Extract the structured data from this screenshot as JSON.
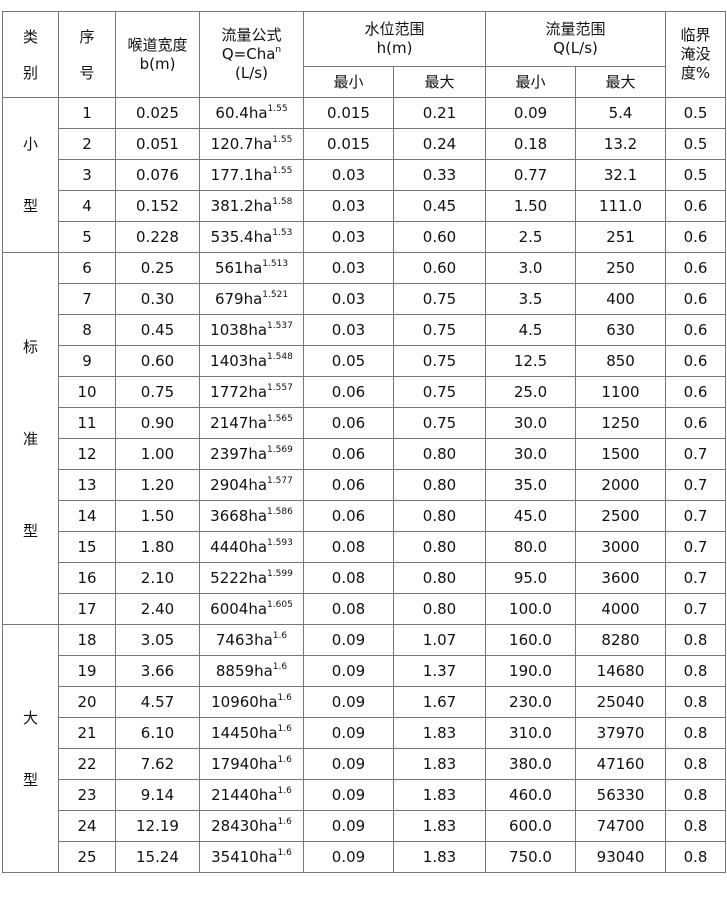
{
  "headers": {
    "category": [
      "类",
      "别"
    ],
    "index": [
      "序",
      "号"
    ],
    "throat_width": [
      "喉道宽度",
      "b(m)"
    ],
    "formula": [
      "流量公式",
      "Q=Cha",
      "n",
      "(L/s)"
    ],
    "water_level": [
      "水位范围",
      "h(m)"
    ],
    "flow_range": [
      "流量范围",
      "Q(L/s)"
    ],
    "submergence": [
      "临界",
      "淹没",
      "度%"
    ],
    "min": "最小",
    "max": "最大"
  },
  "groups": [
    {
      "label": [
        "小",
        "型"
      ],
      "rows": [
        {
          "no": "1",
          "b": "0.025",
          "c": "60.4ha",
          "n": "1.55",
          "hmin": "0.015",
          "hmax": "0.21",
          "qmin": "0.09",
          "qmax": "5.4",
          "s": "0.5"
        },
        {
          "no": "2",
          "b": "0.051",
          "c": "120.7ha",
          "n": "1.55",
          "hmin": "0.015",
          "hmax": "0.24",
          "qmin": "0.18",
          "qmax": "13.2",
          "s": "0.5"
        },
        {
          "no": "3",
          "b": "0.076",
          "c": "177.1ha",
          "n": "1.55",
          "hmin": "0.03",
          "hmax": "0.33",
          "qmin": "0.77",
          "qmax": "32.1",
          "s": "0.5"
        },
        {
          "no": "4",
          "b": "0.152",
          "c": "381.2ha",
          "n": "1.58",
          "hmin": "0.03",
          "hmax": "0.45",
          "qmin": "1.50",
          "qmax": "111.0",
          "s": "0.6"
        },
        {
          "no": "5",
          "b": "0.228",
          "c": "535.4ha",
          "n": "1.53",
          "hmin": "0.03",
          "hmax": "0.60",
          "qmin": "2.5",
          "qmax": "251",
          "s": "0.6"
        }
      ]
    },
    {
      "label": [
        "标",
        "准",
        "型"
      ],
      "rows": [
        {
          "no": "6",
          "b": "0.25",
          "c": "561ha",
          "n": "1.513",
          "hmin": "0.03",
          "hmax": "0.60",
          "qmin": "3.0",
          "qmax": "250",
          "s": "0.6"
        },
        {
          "no": "7",
          "b": "0.30",
          "c": "679ha",
          "n": "1.521",
          "hmin": "0.03",
          "hmax": "0.75",
          "qmin": "3.5",
          "qmax": "400",
          "s": "0.6"
        },
        {
          "no": "8",
          "b": "0.45",
          "c": "1038ha",
          "n": "1.537",
          "hmin": "0.03",
          "hmax": "0.75",
          "qmin": "4.5",
          "qmax": "630",
          "s": "0.6"
        },
        {
          "no": "9",
          "b": "0.60",
          "c": "1403ha",
          "n": "1.548",
          "hmin": "0.05",
          "hmax": "0.75",
          "qmin": "12.5",
          "qmax": "850",
          "s": "0.6"
        },
        {
          "no": "10",
          "b": "0.75",
          "c": "1772ha",
          "n": "1.557",
          "hmin": "0.06",
          "hmax": "0.75",
          "qmin": "25.0",
          "qmax": "1100",
          "s": "0.6"
        },
        {
          "no": "11",
          "b": "0.90",
          "c": "2147ha",
          "n": "1.565",
          "hmin": "0.06",
          "hmax": "0.75",
          "qmin": "30.0",
          "qmax": "1250",
          "s": "0.6"
        },
        {
          "no": "12",
          "b": "1.00",
          "c": "2397ha",
          "n": "1.569",
          "hmin": "0.06",
          "hmax": "0.80",
          "qmin": "30.0",
          "qmax": "1500",
          "s": "0.7"
        },
        {
          "no": "13",
          "b": "1.20",
          "c": "2904ha",
          "n": "1.577",
          "hmin": "0.06",
          "hmax": "0.80",
          "qmin": "35.0",
          "qmax": "2000",
          "s": "0.7"
        },
        {
          "no": "14",
          "b": "1.50",
          "c": "3668ha",
          "n": "1.586",
          "hmin": "0.06",
          "hmax": "0.80",
          "qmin": "45.0",
          "qmax": "2500",
          "s": "0.7"
        },
        {
          "no": "15",
          "b": "1.80",
          "c": "4440ha",
          "n": "1.593",
          "hmin": "0.08",
          "hmax": "0.80",
          "qmin": "80.0",
          "qmax": "3000",
          "s": "0.7"
        },
        {
          "no": "16",
          "b": "2.10",
          "c": "5222ha",
          "n": "1.599",
          "hmin": "0.08",
          "hmax": "0.80",
          "qmin": "95.0",
          "qmax": "3600",
          "s": "0.7"
        },
        {
          "no": "17",
          "b": "2.40",
          "c": "6004ha",
          "n": "1.605",
          "hmin": "0.08",
          "hmax": "0.80",
          "qmin": "100.0",
          "qmax": "4000",
          "s": "0.7"
        }
      ]
    },
    {
      "label": [
        "大",
        "型"
      ],
      "rows": [
        {
          "no": "18",
          "b": "3.05",
          "c": "7463ha",
          "n": "1.6",
          "hmin": "0.09",
          "hmax": "1.07",
          "qmin": "160.0",
          "qmax": "8280",
          "s": "0.8"
        },
        {
          "no": "19",
          "b": "3.66",
          "c": "8859ha",
          "n": "1.6",
          "hmin": "0.09",
          "hmax": "1.37",
          "qmin": "190.0",
          "qmax": "14680",
          "s": "0.8"
        },
        {
          "no": "20",
          "b": "4.57",
          "c": "10960ha",
          "n": "1.6",
          "hmin": "0.09",
          "hmax": "1.67",
          "qmin": "230.0",
          "qmax": "25040",
          "s": "0.8"
        },
        {
          "no": "21",
          "b": "6.10",
          "c": "14450ha",
          "n": "1.6",
          "hmin": "0.09",
          "hmax": "1.83",
          "qmin": "310.0",
          "qmax": "37970",
          "s": "0.8"
        },
        {
          "no": "22",
          "b": "7.62",
          "c": "17940ha",
          "n": "1.6",
          "hmin": "0.09",
          "hmax": "1.83",
          "qmin": "380.0",
          "qmax": "47160",
          "s": "0.8"
        },
        {
          "no": "23",
          "b": "9.14",
          "c": "21440ha",
          "n": "1.6",
          "hmin": "0.09",
          "hmax": "1.83",
          "qmin": "460.0",
          "qmax": "56330",
          "s": "0.8"
        },
        {
          "no": "24",
          "b": "12.19",
          "c": "28430ha",
          "n": "1.6",
          "hmin": "0.09",
          "hmax": "1.83",
          "qmin": "600.0",
          "qmax": "74700",
          "s": "0.8"
        },
        {
          "no": "25",
          "b": "15.24",
          "c": "35410ha",
          "n": "1.6",
          "hmin": "0.09",
          "hmax": "1.83",
          "qmin": "750.0",
          "qmax": "93040",
          "s": "0.8"
        }
      ]
    }
  ]
}
